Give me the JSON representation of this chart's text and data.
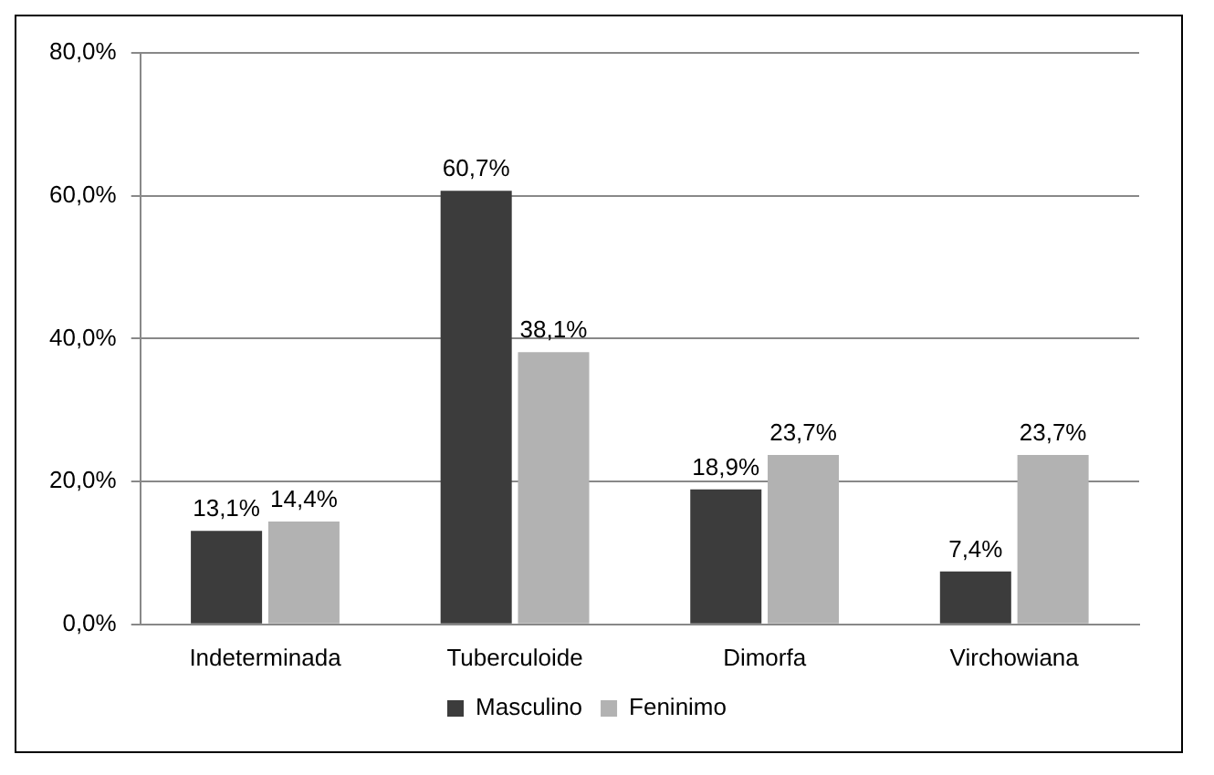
{
  "chart_data": {
    "type": "bar",
    "categories": [
      "Indeterminada",
      "Tuberculoide",
      "Dimorfa",
      "Virchowiana"
    ],
    "series": [
      {
        "name": "Masculino",
        "color": "#3c3c3c",
        "values": [
          13.1,
          60.7,
          18.9,
          7.4
        ],
        "value_labels": [
          "13,1%",
          "60,7%",
          "18,9%",
          "7,4%"
        ]
      },
      {
        "name": "Feninimo",
        "color": "#b2b2b2",
        "values": [
          14.4,
          38.1,
          23.7,
          23.7
        ],
        "value_labels": [
          "14,4%",
          "38,1%",
          "23,7%",
          "23,7%"
        ]
      }
    ],
    "ylim": [
      0,
      80
    ],
    "yticks": [
      {
        "value": 0,
        "label": "0,0%"
      },
      {
        "value": 20,
        "label": "20,0%"
      },
      {
        "value": 40,
        "label": "40,0%"
      },
      {
        "value": 60,
        "label": "60,0%"
      },
      {
        "value": 80,
        "label": "80,0%"
      }
    ],
    "grid": "y",
    "legend": "bottom"
  }
}
